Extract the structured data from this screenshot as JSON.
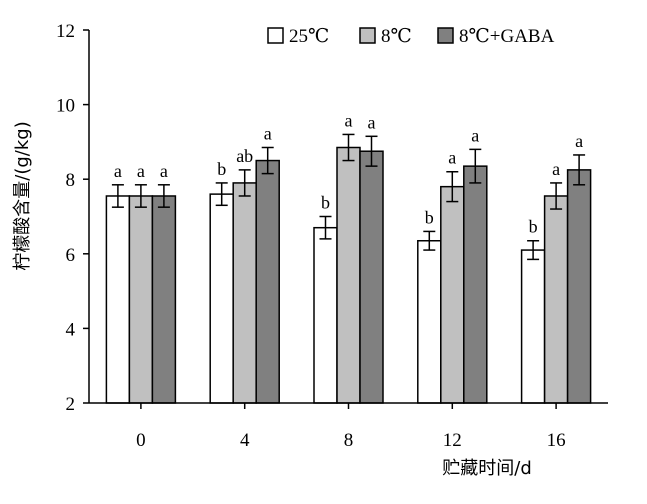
{
  "chart_data": {
    "type": "bar",
    "title": "",
    "xlabel": "贮藏时间/d",
    "ylabel": "柠檬酸含量/(g/kg)",
    "ylim": [
      2,
      12
    ],
    "yticks": [
      2,
      4,
      6,
      8,
      10,
      12
    ],
    "categories": [
      "0",
      "4",
      "8",
      "12",
      "16"
    ],
    "grid": false,
    "legend_position": "top-right",
    "series": [
      {
        "name": "25℃",
        "color": "#ffffff",
        "values": [
          7.55,
          7.6,
          6.7,
          6.35,
          6.1
        ],
        "errors": [
          0.3,
          0.3,
          0.3,
          0.25,
          0.25
        ],
        "labels": [
          "a",
          "b",
          "b",
          "b",
          "b"
        ]
      },
      {
        "name": "8℃",
        "color": "#c0c0c0",
        "values": [
          7.55,
          7.9,
          8.85,
          7.8,
          7.55
        ],
        "errors": [
          0.3,
          0.35,
          0.35,
          0.4,
          0.35
        ],
        "labels": [
          "a",
          "ab",
          "a",
          "a",
          "a"
        ]
      },
      {
        "name": "8℃+GABA",
        "color": "#808080",
        "values": [
          7.55,
          8.5,
          8.75,
          8.35,
          8.25
        ],
        "errors": [
          0.3,
          0.35,
          0.4,
          0.45,
          0.4
        ],
        "labels": [
          "a",
          "a",
          "a",
          "a",
          "a"
        ]
      }
    ]
  }
}
